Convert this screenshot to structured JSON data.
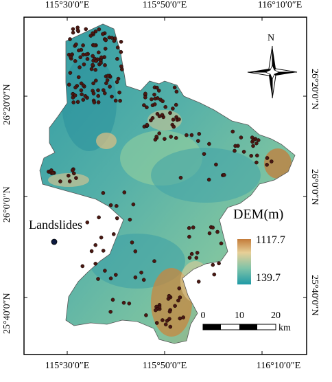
{
  "map": {
    "longitude_labels": [
      "115°30′0″E",
      "115°50′0″E",
      "116°10′0″E"
    ],
    "latitude_labels": [
      "26°20′0″N",
      "26°0′0″N",
      "25°40′0″N"
    ],
    "legend": {
      "title": "DEM(m)",
      "max": "1117.7",
      "min": "139.7",
      "colors": [
        "#c47c3a",
        "#e6cf97",
        "#7ec3a8",
        "#1f9aa6"
      ]
    },
    "landslide_legend_label": "Landslides",
    "scale_bar": {
      "ticks": [
        "0",
        "10",
        "20"
      ],
      "unit": "km"
    },
    "north_arrow": {
      "label": "N"
    },
    "colors": {
      "lowland": "#3fa3a8",
      "upland": "#9ccf97",
      "highland": "#c47c3a",
      "landslide_point": "#4a1812"
    }
  }
}
